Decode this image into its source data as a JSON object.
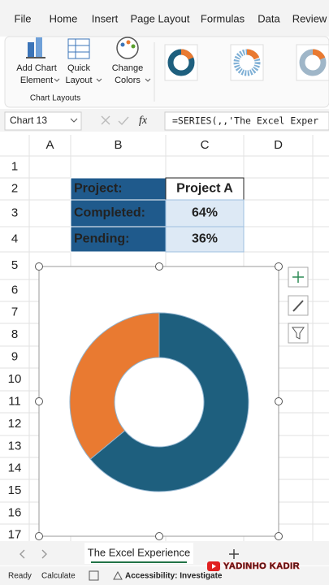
{
  "ribbon": {
    "tabs": [
      "File",
      "Home",
      "Insert",
      "Page Layout",
      "Formulas",
      "Data",
      "Review"
    ],
    "buttons": [
      [
        "Add Chart",
        "Element"
      ],
      [
        "Quick",
        "Layout"
      ],
      [
        "Change",
        "Colors"
      ]
    ],
    "group": "Chart Layouts"
  },
  "formula_bar": {
    "name_box": "Chart 13",
    "fx": "fx",
    "formula": "=SERIES(,,'The Excel Exper"
  },
  "grid": {
    "columns": [
      "A",
      "B",
      "C",
      "D"
    ],
    "rows": [
      "1",
      "2",
      "3",
      "4",
      "5",
      "6",
      "7",
      "8",
      "9",
      "10",
      "11",
      "12",
      "13",
      "14",
      "15",
      "16",
      "17"
    ]
  },
  "table": {
    "rows": [
      [
        "Project:",
        "Project A"
      ],
      [
        "Completed:",
        "64%"
      ],
      [
        "Pending:",
        "36%"
      ]
    ]
  },
  "chart_data": {
    "type": "donut",
    "values": [
      64,
      36
    ],
    "colors": [
      "#1e5f7e",
      "#e97a31"
    ]
  },
  "sheet_tab": "The Excel Experience",
  "status_bar": {
    "items": [
      "Ready",
      "Calculate",
      "Accessibility: Investigate"
    ]
  },
  "watermark": "YADINHO KADIR"
}
